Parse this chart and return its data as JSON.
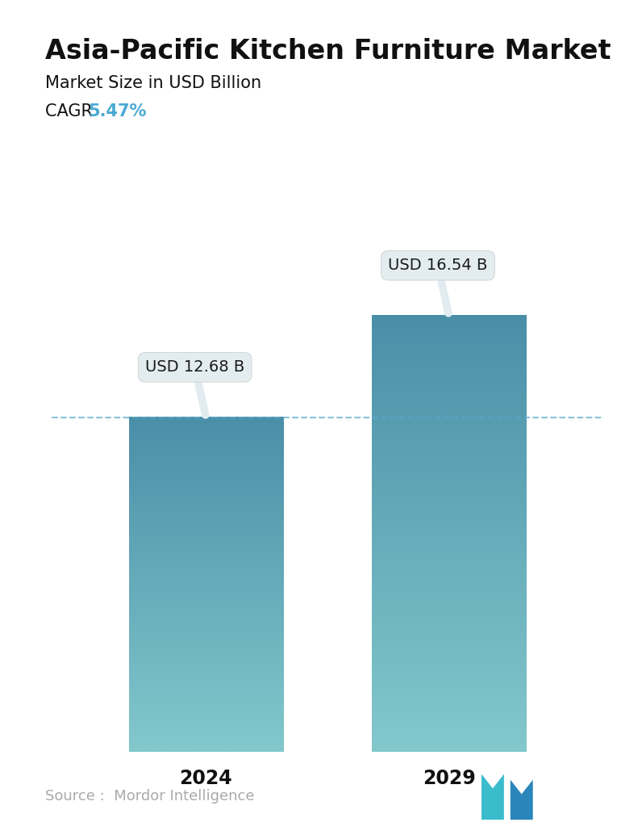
{
  "title": "Asia-Pacific Kitchen Furniture Market",
  "subtitle": "Market Size in USD Billion",
  "cagr_label": "CAGR",
  "cagr_value": "5.47%",
  "cagr_color": "#4BAAD3",
  "years": [
    "2024",
    "2029"
  ],
  "values": [
    12.68,
    16.54
  ],
  "labels": [
    "USD 12.68 B",
    "USD 16.54 B"
  ],
  "bar_top_color": "#4A8FA8",
  "bar_bottom_color": "#82C8CC",
  "dashed_line_color": "#5AAAC8",
  "dashed_line_value": 12.68,
  "source_text": "Source :  Mordor Intelligence",
  "source_color": "#aaaaaa",
  "background_color": "#ffffff",
  "callout_bg": "#E2ECF0",
  "bar_width": 0.28,
  "ylim": [
    0,
    19
  ],
  "title_fontsize": 24,
  "subtitle_fontsize": 15,
  "cagr_fontsize": 15,
  "label_fontsize": 14,
  "tick_fontsize": 17
}
